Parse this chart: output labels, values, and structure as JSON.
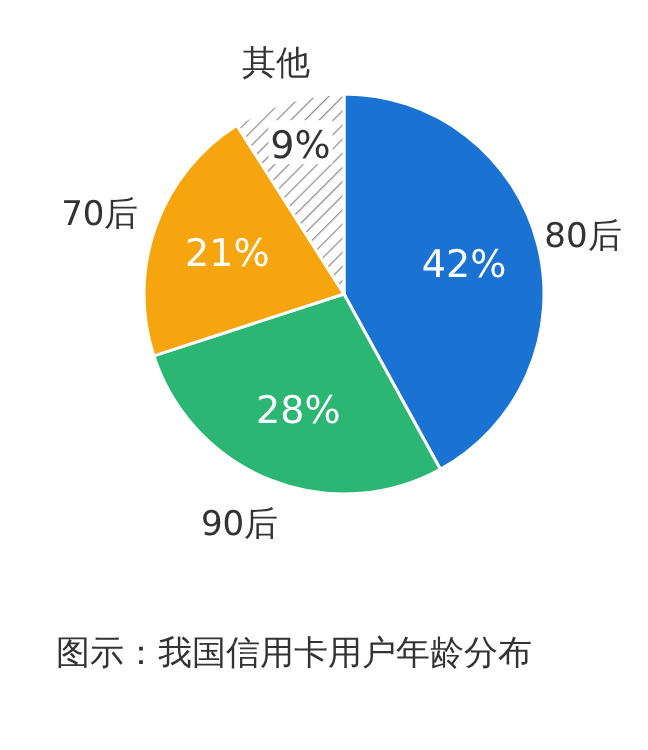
{
  "chart_data": {
    "type": "pie",
    "categories": [
      "80后",
      "90后",
      "70后",
      "其他"
    ],
    "values": [
      42,
      28,
      21,
      9
    ],
    "value_labels": [
      "42%",
      "28%",
      "21%",
      "9%"
    ],
    "colors": [
      "#1a73d2",
      "#2bb673",
      "#f6a50f",
      "#ffffff"
    ],
    "annotations": [
      "图示：我国信用卡用户年龄分布"
    ]
  }
}
